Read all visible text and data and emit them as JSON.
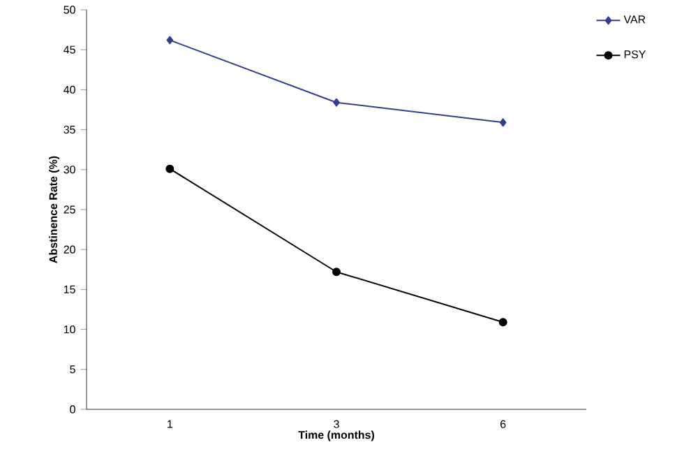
{
  "chart_data": {
    "type": "line",
    "xlabel": "Time (months)",
    "ylabel": "Abstinence Rate (%)",
    "categories": [
      "1",
      "3",
      "6"
    ],
    "series": [
      {
        "name": "VAR",
        "color": "#333f8c",
        "values": [
          46.2,
          38.4,
          35.9
        ],
        "marker": "diamond"
      },
      {
        "name": "PSY",
        "color": "#000000",
        "values": [
          30.1,
          17.2,
          10.9
        ],
        "marker": "circle"
      }
    ],
    "ylim": [
      0,
      50
    ],
    "yticks": [
      0,
      5,
      10,
      15,
      20,
      25,
      30,
      35,
      40,
      45,
      50
    ],
    "grid": false,
    "legend": "top right",
    "line_style": "solid"
  }
}
